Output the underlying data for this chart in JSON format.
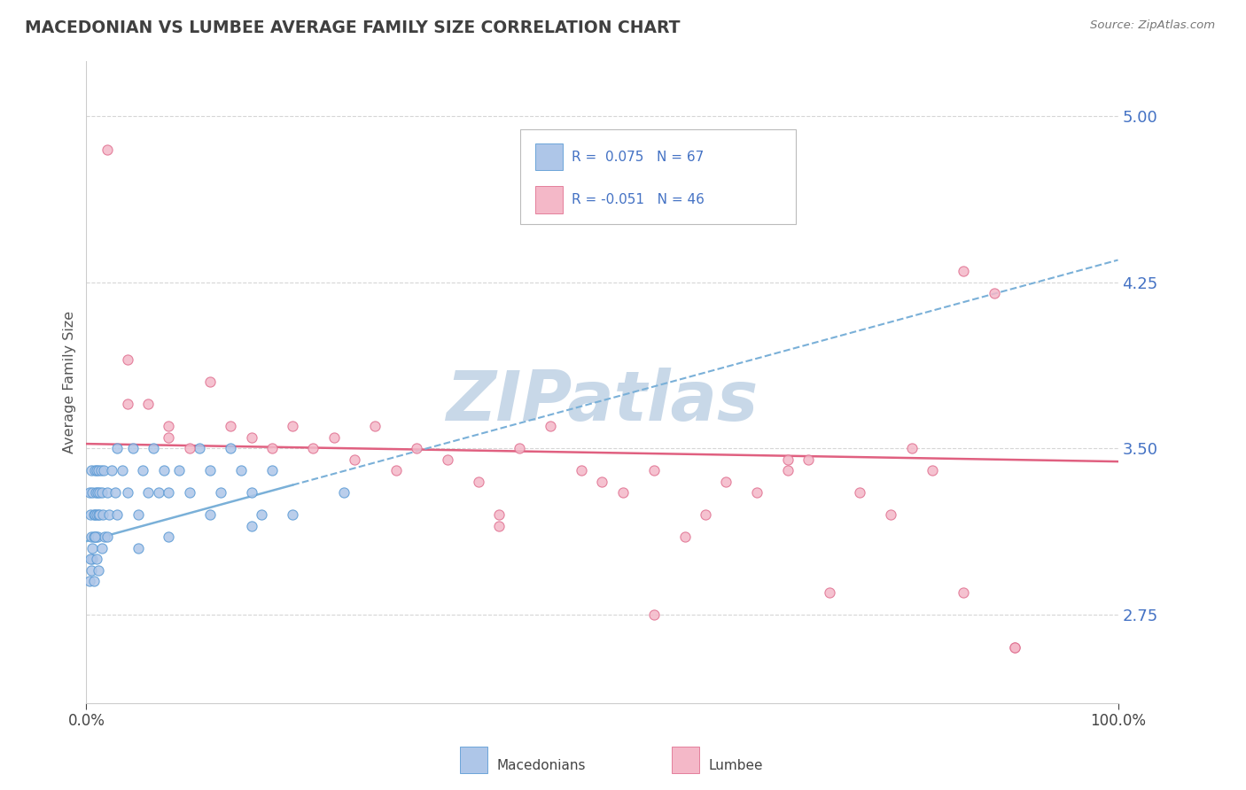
{
  "title": "MACEDONIAN VS LUMBEE AVERAGE FAMILY SIZE CORRELATION CHART",
  "source_text": "Source: ZipAtlas.com",
  "ylabel": "Average Family Size",
  "yticks": [
    2.75,
    3.5,
    4.25,
    5.0
  ],
  "xlim": [
    0.0,
    100.0
  ],
  "ylim": [
    2.35,
    5.25
  ],
  "background_color": "#ffffff",
  "grid_color": "#cccccc",
  "axis_color": "#4472c4",
  "title_color": "#404040",
  "watermark_color": "#c8d8e8",
  "scatter_mac_color": "#aec6e8",
  "scatter_mac_edge": "#5b9bd5",
  "scatter_lum_color": "#f4b8c8",
  "scatter_lum_edge": "#e07090",
  "trend_mac_color": "#7ab0d8",
  "trend_lum_color": "#e06080",
  "mac_points_x": [
    0.3,
    0.4,
    0.5,
    0.5,
    0.6,
    0.6,
    0.7,
    0.7,
    0.8,
    0.8,
    0.9,
    0.9,
    1.0,
    1.0,
    1.1,
    1.1,
    1.2,
    1.2,
    1.3,
    1.3,
    1.4,
    1.5,
    1.6,
    1.7,
    1.8,
    2.0,
    2.2,
    2.5,
    2.8,
    3.0,
    3.5,
    4.0,
    4.5,
    5.0,
    5.5,
    6.0,
    6.5,
    7.0,
    7.5,
    8.0,
    9.0,
    10.0,
    11.0,
    12.0,
    13.0,
    14.0,
    15.0,
    16.0,
    17.0,
    18.0,
    0.3,
    0.4,
    0.5,
    0.6,
    0.7,
    0.8,
    1.0,
    1.2,
    1.5,
    2.0,
    3.0,
    5.0,
    8.0,
    12.0,
    16.0,
    20.0,
    25.0
  ],
  "mac_points_y": [
    3.3,
    3.2,
    3.1,
    3.4,
    3.0,
    3.3,
    3.2,
    3.1,
    3.4,
    3.2,
    3.3,
    3.1,
    3.4,
    3.2,
    3.3,
    3.1,
    3.4,
    3.2,
    3.3,
    3.2,
    3.4,
    3.3,
    3.2,
    3.4,
    3.1,
    3.3,
    3.2,
    3.4,
    3.3,
    3.5,
    3.4,
    3.3,
    3.5,
    3.2,
    3.4,
    3.3,
    3.5,
    3.3,
    3.4,
    3.3,
    3.4,
    3.3,
    3.5,
    3.4,
    3.3,
    3.5,
    3.4,
    3.3,
    3.2,
    3.4,
    2.9,
    3.0,
    2.95,
    3.05,
    2.9,
    3.1,
    3.0,
    2.95,
    3.05,
    3.1,
    3.2,
    3.05,
    3.1,
    3.2,
    3.15,
    3.2,
    3.3
  ],
  "lum_points_x": [
    2.0,
    4.0,
    6.0,
    8.0,
    10.0,
    12.0,
    14.0,
    16.0,
    18.0,
    20.0,
    22.0,
    24.0,
    26.0,
    28.0,
    30.0,
    32.0,
    35.0,
    38.0,
    40.0,
    42.0,
    45.0,
    48.0,
    50.0,
    52.0,
    55.0,
    58.0,
    60.0,
    62.0,
    65.0,
    68.0,
    70.0,
    72.0,
    75.0,
    78.0,
    80.0,
    82.0,
    85.0,
    88.0,
    90.0,
    4.0,
    8.0,
    40.0,
    55.0,
    68.0,
    85.0,
    90.0
  ],
  "lum_points_y": [
    4.85,
    3.9,
    3.7,
    3.6,
    3.5,
    3.8,
    3.6,
    3.55,
    3.5,
    3.6,
    3.5,
    3.55,
    3.45,
    3.6,
    3.4,
    3.5,
    3.45,
    3.35,
    3.2,
    3.5,
    3.6,
    3.4,
    3.35,
    3.3,
    3.4,
    3.1,
    3.2,
    3.35,
    3.3,
    3.4,
    3.45,
    2.85,
    3.3,
    3.2,
    3.5,
    3.4,
    4.3,
    4.2,
    2.6,
    3.7,
    3.55,
    3.15,
    2.75,
    3.45,
    2.85,
    2.6
  ],
  "trend_mac_x0": 0.0,
  "trend_mac_y0": 3.08,
  "trend_mac_x1": 100.0,
  "trend_mac_y1": 4.35,
  "trend_mac_solid_x1": 20.0,
  "trend_lum_x0": 0.0,
  "trend_lum_y0": 3.52,
  "trend_lum_x1": 100.0,
  "trend_lum_y1": 3.44
}
